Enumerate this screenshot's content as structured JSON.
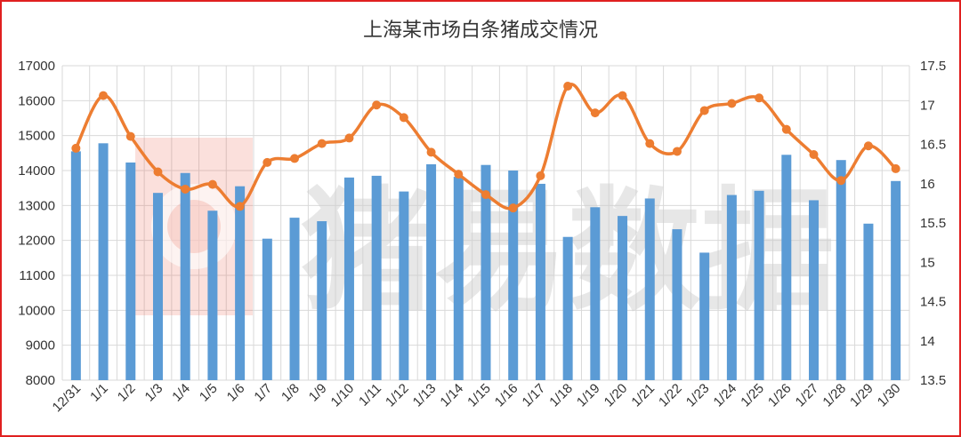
{
  "chart_data": {
    "type": "bar+line",
    "title": "上海某市场白条猪成交情况",
    "categories": [
      "12/31",
      "1/1",
      "1/2",
      "1/3",
      "1/4",
      "1/5",
      "1/6",
      "1/7",
      "1/8",
      "1/9",
      "1/10",
      "1/11",
      "1/12",
      "1/13",
      "1/14",
      "1/15",
      "1/16",
      "1/17",
      "1/18",
      "1/19",
      "1/20",
      "1/21",
      "1/22",
      "1/23",
      "1/24",
      "1/25",
      "1/26",
      "1/27",
      "1/28",
      "1/29",
      "1/30"
    ],
    "series": [
      {
        "kind": "bar",
        "axis": "left",
        "color": "#5b9bd5",
        "values": [
          14550,
          14780,
          14230,
          13360,
          13930,
          12850,
          13550,
          12050,
          12650,
          12550,
          13800,
          13850,
          13400,
          14180,
          13820,
          14160,
          14000,
          13620,
          12100,
          12950,
          12700,
          13200,
          12320,
          11650,
          13300,
          13420,
          14450,
          13150,
          14300,
          12480,
          13700
        ]
      },
      {
        "kind": "line",
        "axis": "right",
        "color": "#ed7d31",
        "values": [
          16.45,
          17.12,
          16.6,
          16.15,
          15.93,
          15.99,
          15.71,
          16.27,
          16.32,
          16.51,
          16.58,
          17.0,
          16.84,
          16.4,
          16.12,
          15.86,
          15.69,
          16.1,
          17.24,
          16.9,
          17.12,
          16.51,
          16.41,
          16.93,
          17.02,
          17.09,
          16.69,
          16.37,
          16.04,
          16.48,
          16.19
        ]
      }
    ],
    "ylim_left": [
      8000,
      17000
    ],
    "yticks_left": [
      "8000",
      "9000",
      "10000",
      "11000",
      "12000",
      "13000",
      "14000",
      "15000",
      "16000",
      "17000"
    ],
    "ylim_right": [
      13.5,
      17.5
    ],
    "yticks_right": [
      "13.5",
      "14",
      "14.5",
      "15",
      "15.5",
      "16",
      "16.5",
      "17",
      "17.5"
    ],
    "grid": true,
    "legend": "none"
  },
  "watermark": {
    "text": "猪易数据",
    "logo_color": "#e8553e"
  },
  "frame_color": "#e02020"
}
